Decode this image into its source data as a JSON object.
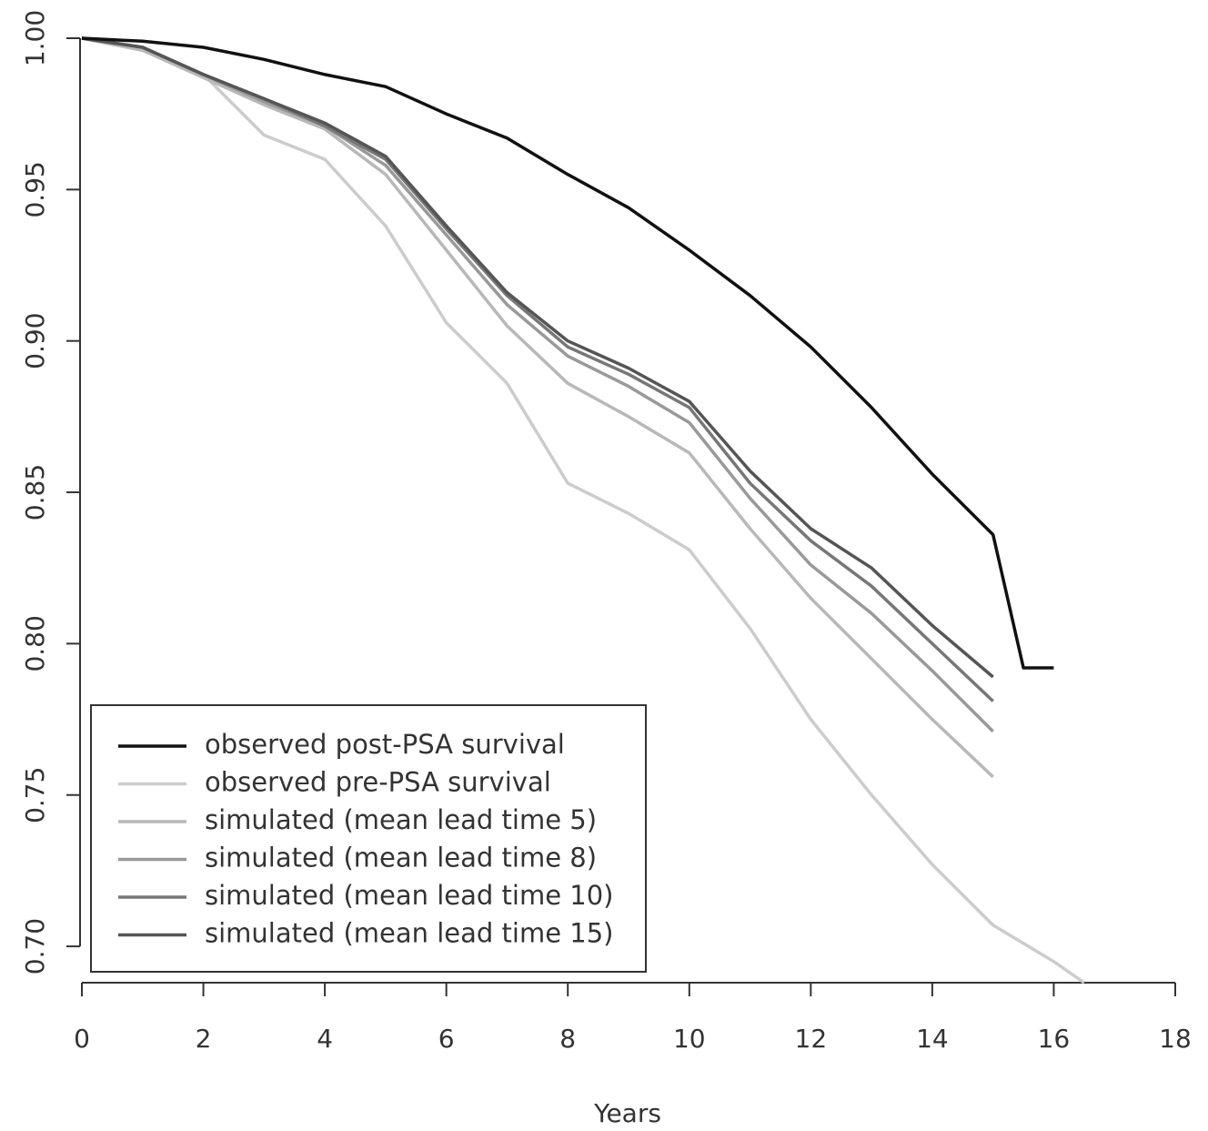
{
  "chart_data": {
    "type": "line",
    "x_label": "Years",
    "x": [
      0,
      1,
      2,
      3,
      4,
      5,
      6,
      7,
      8,
      9,
      10,
      11,
      12,
      13,
      14,
      15,
      15.5,
      16,
      16.5
    ],
    "series": [
      {
        "name": "observed post-PSA survival",
        "color": "#111111",
        "values": [
          1.0,
          0.999,
          0.997,
          0.993,
          0.988,
          0.984,
          0.975,
          0.967,
          0.955,
          0.944,
          0.93,
          0.915,
          0.898,
          0.878,
          0.856,
          0.836,
          0.792,
          0.792,
          null
        ]
      },
      {
        "name": "observed pre-PSA survival",
        "color": "#cccccc",
        "values": [
          1.0,
          0.996,
          0.988,
          0.968,
          0.96,
          0.938,
          0.906,
          0.886,
          0.853,
          0.843,
          0.831,
          0.805,
          0.775,
          0.75,
          0.727,
          0.707,
          0.701,
          0.695,
          0.688
        ]
      },
      {
        "name": "simulated (mean lead time 5)",
        "color": "#b8b8b8",
        "values": [
          1.0,
          0.996,
          0.987,
          0.978,
          0.97,
          0.955,
          0.93,
          0.905,
          0.886,
          0.875,
          0.863,
          0.838,
          0.815,
          0.795,
          0.775,
          0.756,
          null,
          null,
          null
        ]
      },
      {
        "name": "simulated (mean lead time 8)",
        "color": "#999999",
        "values": [
          1.0,
          0.997,
          0.988,
          0.979,
          0.971,
          0.958,
          0.935,
          0.912,
          0.895,
          0.885,
          0.873,
          0.848,
          0.826,
          0.81,
          0.791,
          0.771,
          null,
          null,
          null
        ]
      },
      {
        "name": "simulated (mean lead time 10)",
        "color": "#777777",
        "values": [
          1.0,
          0.997,
          0.988,
          0.98,
          0.971,
          0.96,
          0.937,
          0.915,
          0.898,
          0.889,
          0.878,
          0.853,
          0.834,
          0.819,
          0.8,
          0.781,
          null,
          null,
          null
        ]
      },
      {
        "name": "simulated (mean lead time 15)",
        "color": "#555555",
        "values": [
          1.0,
          0.997,
          0.988,
          0.98,
          0.972,
          0.961,
          0.938,
          0.916,
          0.9,
          0.891,
          0.88,
          0.857,
          0.838,
          0.825,
          0.806,
          0.789,
          null,
          null,
          null
        ]
      }
    ],
    "xlim": [
      0,
      18
    ],
    "xticks": [
      0,
      2,
      4,
      6,
      8,
      10,
      12,
      14,
      16,
      18
    ],
    "ylim": [
      0.688,
      1.0
    ],
    "yticks": [
      {
        "value": 0.7,
        "label": "0.70"
      },
      0.75,
      {
        "value": 0.8,
        "label": "0.80"
      },
      0.85,
      {
        "value": 0.9,
        "label": "0.90"
      },
      0.95,
      {
        "value": 1.0,
        "label": "1.00"
      }
    ],
    "grid": false,
    "legend": "bottomleft"
  }
}
